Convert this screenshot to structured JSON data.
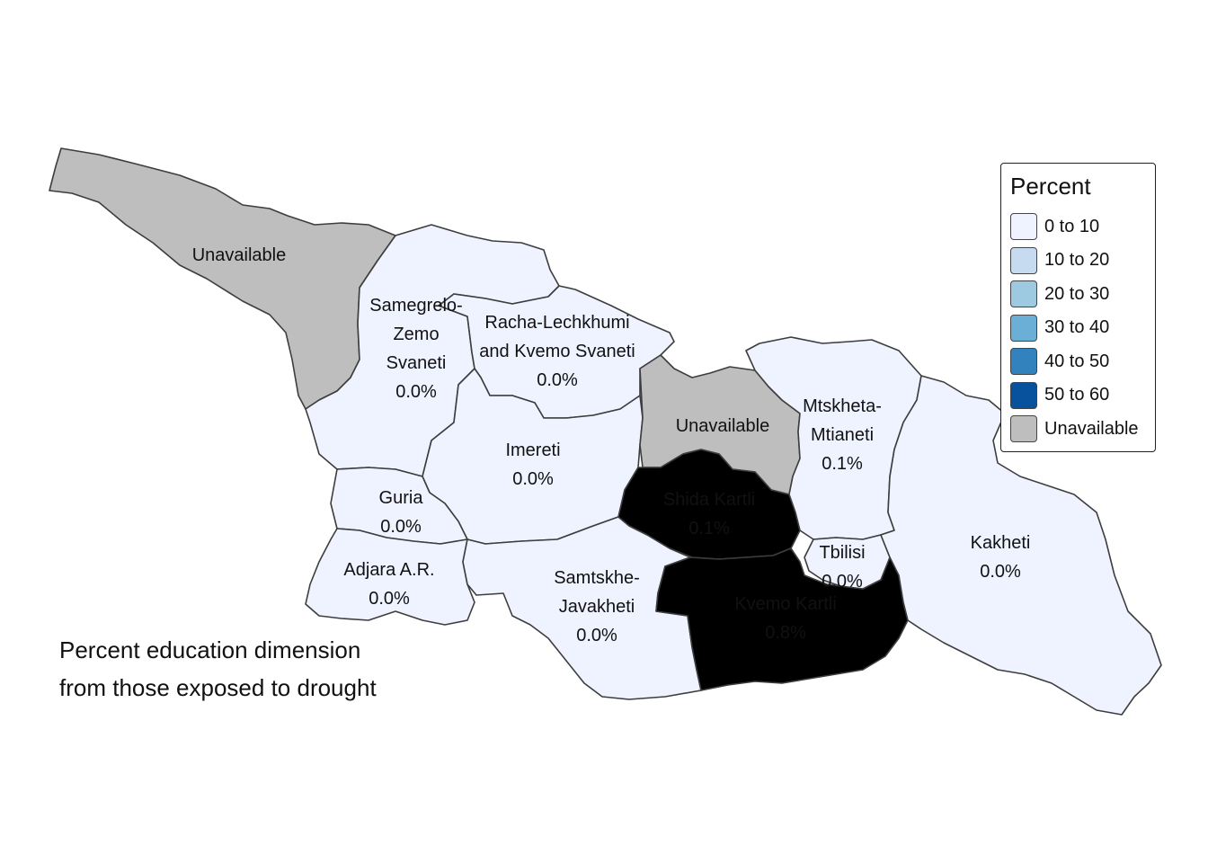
{
  "map": {
    "regions": [
      {
        "id": "abkhazia",
        "lines": [
          "Unavailable"
        ],
        "value": "Unavailable"
      },
      {
        "id": "samegrelo",
        "lines": [
          "Samegrelo-",
          "Zemo",
          "Svaneti",
          "0.0%"
        ],
        "value": "0 to 10"
      },
      {
        "id": "racha",
        "lines": [
          "Racha-Lechkhumi",
          "and Kvemo Svaneti",
          "0.0%"
        ],
        "value": "0 to 10"
      },
      {
        "id": "imereti",
        "lines": [
          "Imereti",
          "0.0%"
        ],
        "value": "0 to 10"
      },
      {
        "id": "guria",
        "lines": [
          "Guria",
          "0.0%"
        ],
        "value": "0 to 10"
      },
      {
        "id": "adjara",
        "lines": [
          "Adjara A.R.",
          "0.0%"
        ],
        "value": "0 to 10"
      },
      {
        "id": "samtskhe",
        "lines": [
          "Samtskhe-",
          "Javakheti",
          "0.0%"
        ],
        "value": "0 to 10"
      },
      {
        "id": "south-ossetia",
        "lines": [
          "Unavailable"
        ],
        "value": "Unavailable"
      },
      {
        "id": "shida-kartli",
        "lines": [
          "Shida Kartli",
          "0.1%"
        ],
        "value": "0 to 10"
      },
      {
        "id": "mtskheta",
        "lines": [
          "Mtskheta-",
          "Mtianeti",
          "0.1%"
        ],
        "value": "0 to 10"
      },
      {
        "id": "kvemo-kartli",
        "lines": [
          "Kvemo Kartli",
          "0.8%"
        ],
        "value": "0 to 10"
      },
      {
        "id": "tbilisi",
        "lines": [
          "Tbilisi",
          "0.0%"
        ],
        "value": "0 to 10"
      },
      {
        "id": "kakheti",
        "lines": [
          "Kakheti",
          "0.0%"
        ],
        "value": "0 to 10"
      }
    ]
  },
  "legend": {
    "title": "Percent",
    "items": [
      {
        "label": "0 to 10",
        "color": "#eff3ff"
      },
      {
        "label": "10 to 20",
        "color": "#c6dbef"
      },
      {
        "label": "20 to 30",
        "color": "#9ecae1"
      },
      {
        "label": "30 to 40",
        "color": "#6baed6"
      },
      {
        "label": "40 to 50",
        "color": "#3182bd"
      },
      {
        "label": "50 to 60",
        "color": "#08519c"
      },
      {
        "label": "Unavailable",
        "color": "#bebebe"
      }
    ]
  },
  "caption": {
    "line1": "Percent education dimension",
    "line2": "from those exposed to drought"
  }
}
